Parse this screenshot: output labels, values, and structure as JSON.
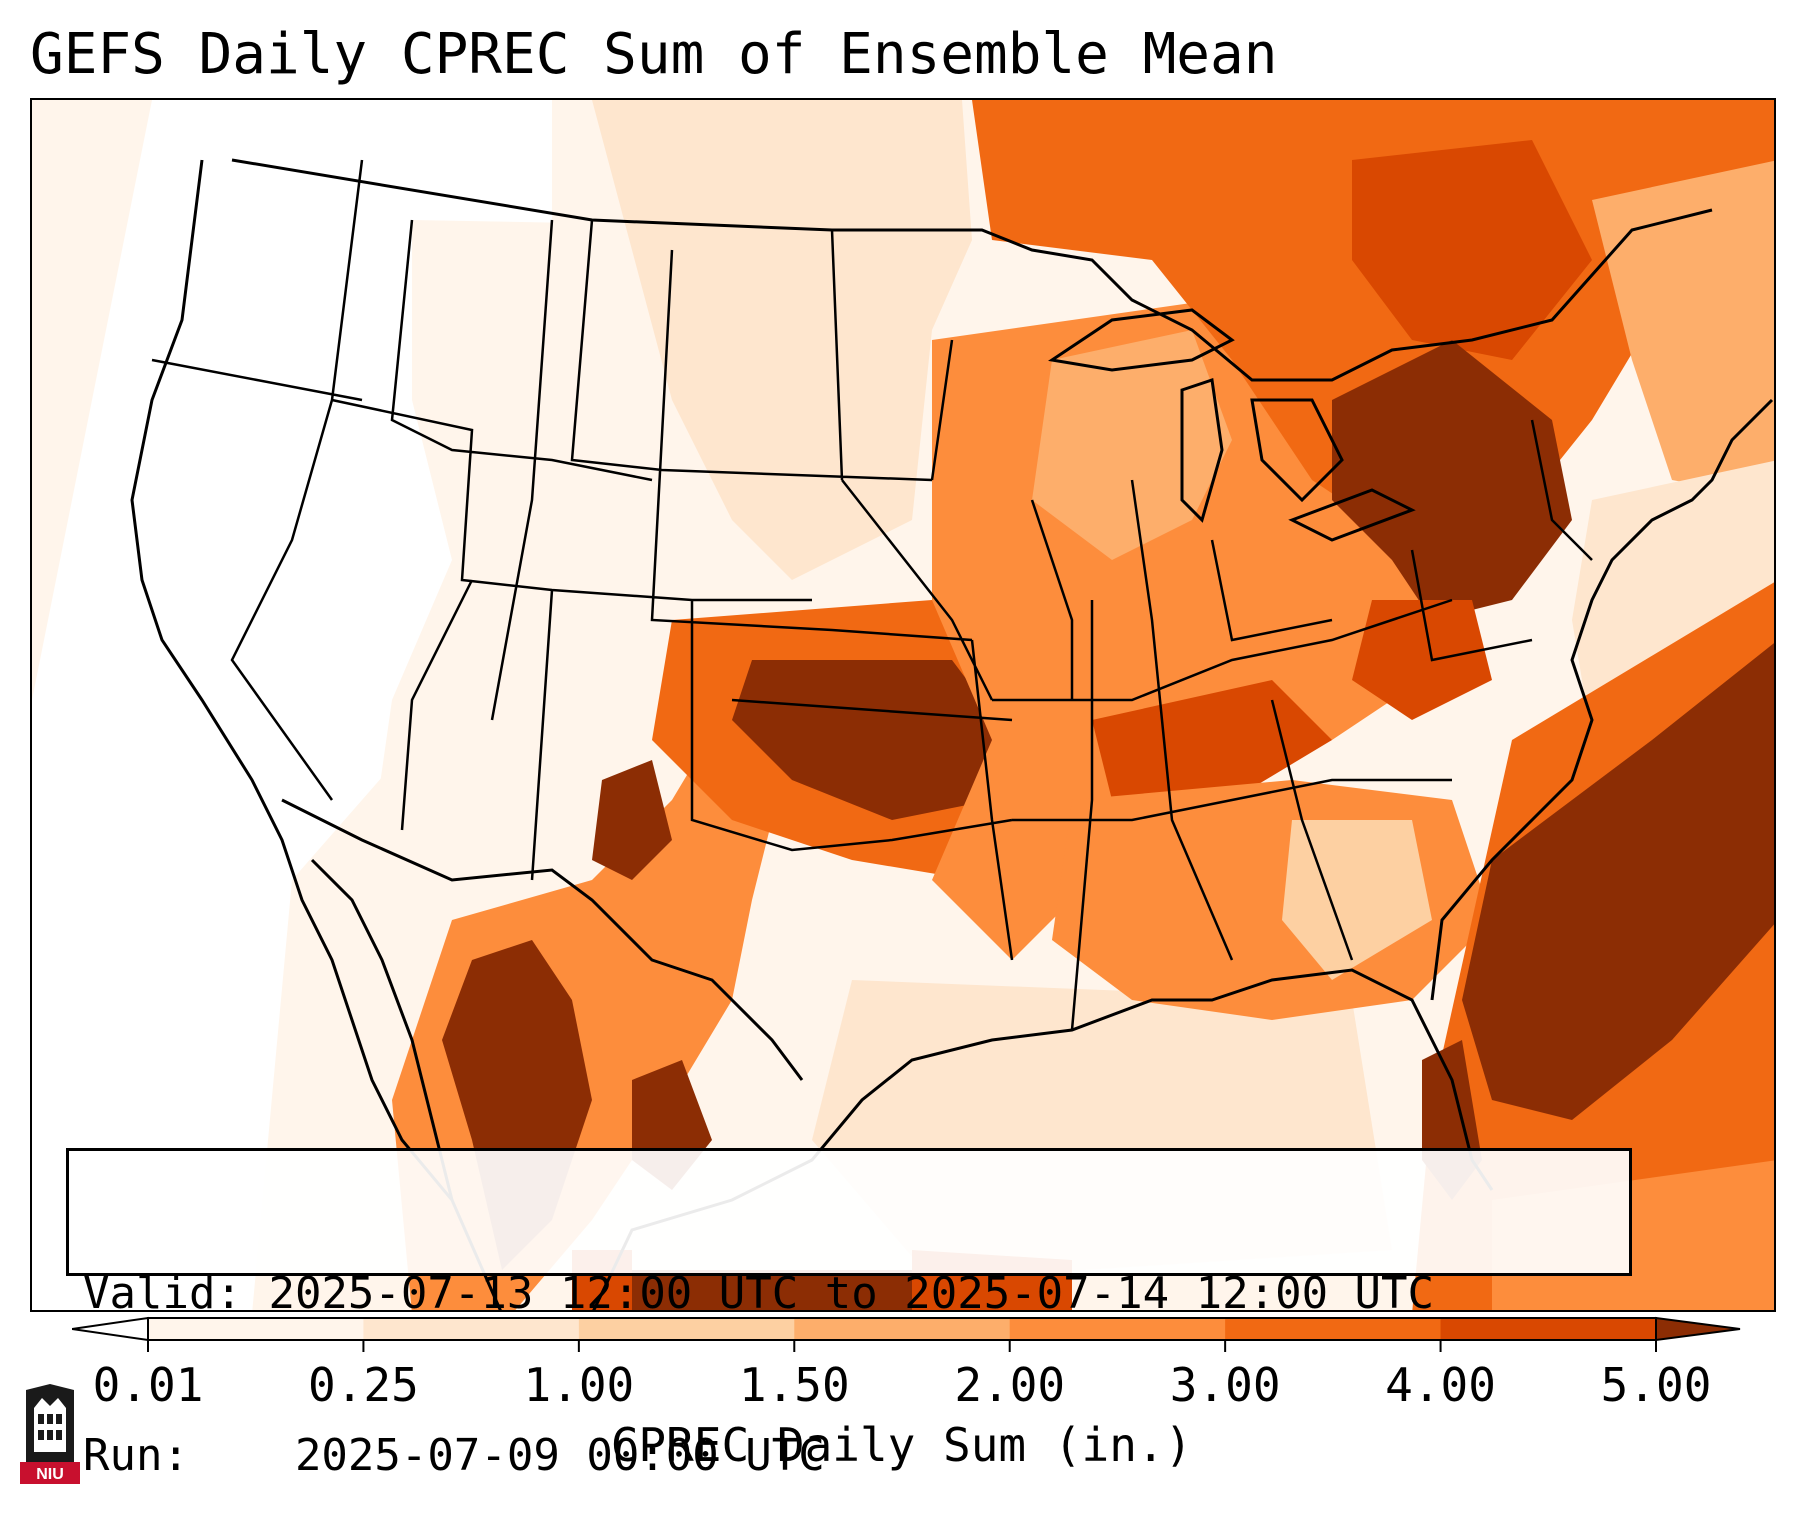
{
  "title": "GEFS Daily CPREC Sum of Ensemble Mean",
  "info": {
    "valid_label": "Valid:",
    "valid_value": "2025-07-13 12:00 UTC to 2025-07-14 12:00 UTC",
    "run_label": "Run:",
    "run_value": "2025-07-09 00:00 UTC"
  },
  "colorbar": {
    "label": "CPREC Daily Sum (in.)",
    "ticks": [
      "0.01",
      "0.25",
      "1.00",
      "1.50",
      "2.00",
      "3.00",
      "4.00",
      "5.00"
    ],
    "colors": [
      "#fff5eb",
      "#fee6ce",
      "#fdd0a2",
      "#fdae6b",
      "#fd8d3c",
      "#f16913",
      "#d94801",
      "#8c2d04"
    ],
    "under_color": "#ffffff",
    "over_color": "#8c2d04",
    "extend": "both"
  },
  "map": {
    "region": "Contiguous United States",
    "coastline_color": "#000000",
    "ocean_color": "#ffffff"
  },
  "logo": {
    "text": "NIU",
    "color": "#c8102e"
  }
}
